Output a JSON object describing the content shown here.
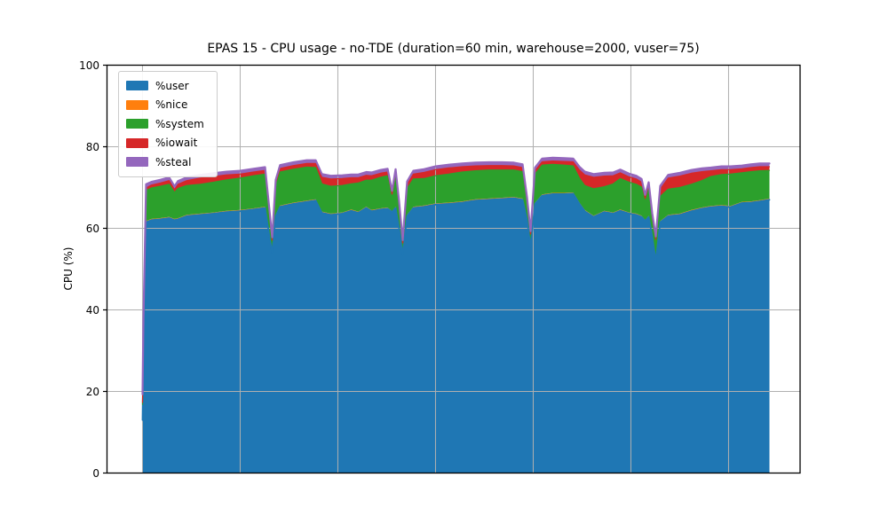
{
  "chart": {
    "title": "EPAS 15 - CPU usage - no-TDE (duration=60 min, warehouse=2000, vuser=75)",
    "ylabel": "CPU (%)"
  },
  "chart_data": {
    "type": "area",
    "stacked": true,
    "title": "EPAS 15 - CPU usage - no-TDE (duration=60 min, warehouse=2000, vuser=75)",
    "xlabel": "",
    "ylabel": "CPU (%)",
    "ylim": [
      0,
      100
    ],
    "yticks": [
      0,
      20,
      40,
      60,
      80,
      100
    ],
    "x_tick_labels": [],
    "grid": true,
    "legend_position": "upper left",
    "x_unit": "fraction of 60 min run (no x tick labels shown)",
    "x_data_margin": [
      0.0512,
      0.9558
    ],
    "x_gridline_ts": [
      0.0,
      0.1558,
      0.3116,
      0.4674,
      0.6232,
      0.779,
      0.9348
    ],
    "t": [
      0.0,
      0.0014,
      0.0057,
      0.0142,
      0.0283,
      0.0425,
      0.051,
      0.0567,
      0.0708,
      0.0921,
      0.1133,
      0.1346,
      0.1558,
      0.1771,
      0.1955,
      0.2025,
      0.2068,
      0.2125,
      0.2195,
      0.2408,
      0.262,
      0.2762,
      0.2861,
      0.3003,
      0.3187,
      0.3329,
      0.3442,
      0.3569,
      0.3654,
      0.3796,
      0.3909,
      0.398,
      0.4037,
      0.4093,
      0.415,
      0.4221,
      0.432,
      0.449,
      0.4674,
      0.4887,
      0.5099,
      0.5312,
      0.5524,
      0.5737,
      0.5921,
      0.6062,
      0.6133,
      0.619,
      0.6261,
      0.6374,
      0.6544,
      0.6728,
      0.687,
      0.6969,
      0.7054,
      0.7195,
      0.7365,
      0.7507,
      0.762,
      0.7762,
      0.7875,
      0.796,
      0.8017,
      0.8074,
      0.813,
      0.8187,
      0.8258,
      0.8385,
      0.8569,
      0.8754,
      0.8924,
      0.9065,
      0.9235,
      0.9377,
      0.9561,
      0.9703,
      0.9845,
      1.0
    ],
    "series": [
      {
        "name": "%user",
        "color": "#1f77b4",
        "values": [
          13.0,
          30.0,
          61.5,
          62.0,
          62.2,
          62.5,
          62.0,
          62.2,
          63.0,
          63.3,
          63.6,
          64.0,
          64.2,
          64.6,
          65.0,
          58.0,
          54.0,
          63.0,
          65.3,
          66.0,
          66.5,
          66.8,
          63.8,
          63.3,
          63.6,
          64.3,
          63.8,
          65.0,
          64.2,
          64.6,
          64.8,
          64.0,
          65.0,
          60.0,
          53.5,
          63.0,
          65.0,
          65.3,
          65.8,
          66.0,
          66.3,
          66.8,
          67.0,
          67.2,
          67.4,
          67.0,
          62.0,
          55.5,
          66.0,
          68.0,
          68.4,
          68.4,
          68.5,
          66.0,
          64.2,
          62.8,
          64.0,
          63.6,
          64.3,
          63.6,
          63.3,
          62.8,
          61.8,
          62.8,
          58.0,
          52.0,
          61.5,
          63.0,
          63.3,
          64.2,
          64.8,
          65.2,
          65.4,
          65.2,
          66.2,
          66.3,
          66.6,
          67.0
        ]
      },
      {
        "name": "%nice",
        "color": "#ff7f0e",
        "values": [
          0.3,
          0.3,
          0.3,
          0.3,
          0.3,
          0.3,
          0.3,
          0.3,
          0.3,
          0.3,
          0.3,
          0.3,
          0.3,
          0.3,
          0.3,
          0.2,
          0.2,
          0.3,
          0.3,
          0.3,
          0.3,
          0.3,
          0.3,
          0.3,
          0.3,
          0.3,
          0.3,
          0.3,
          0.3,
          0.3,
          0.3,
          0.2,
          0.3,
          0.2,
          0.2,
          0.3,
          0.3,
          0.3,
          0.3,
          0.3,
          0.3,
          0.3,
          0.3,
          0.3,
          0.3,
          0.3,
          0.2,
          0.2,
          0.3,
          0.3,
          0.3,
          0.3,
          0.3,
          0.3,
          0.3,
          0.3,
          0.3,
          0.3,
          0.3,
          0.3,
          0.3,
          0.3,
          0.2,
          0.3,
          0.2,
          0.2,
          0.3,
          0.3,
          0.3,
          0.3,
          0.3,
          0.3,
          0.3,
          0.3,
          0.3,
          0.3,
          0.3,
          0.3
        ]
      },
      {
        "name": "%system",
        "color": "#2ca02c",
        "values": [
          3.5,
          5.0,
          7.5,
          7.6,
          7.8,
          8.0,
          6.5,
          7.3,
          7.2,
          7.2,
          7.4,
          7.6,
          7.8,
          8.0,
          8.0,
          5.0,
          2.5,
          7.0,
          8.2,
          8.2,
          8.2,
          7.8,
          6.8,
          6.7,
          6.6,
          6.3,
          7.0,
          6.5,
          7.3,
          7.6,
          7.8,
          3.5,
          7.5,
          5.0,
          2.3,
          6.5,
          6.8,
          6.6,
          6.8,
          7.0,
          7.2,
          7.0,
          7.0,
          6.8,
          6.6,
          6.6,
          4.0,
          2.5,
          7.0,
          7.2,
          7.0,
          6.8,
          6.5,
          6.0,
          6.0,
          6.6,
          5.9,
          7.0,
          7.6,
          7.4,
          7.2,
          7.0,
          4.5,
          6.5,
          4.0,
          4.5,
          6.0,
          6.3,
          6.4,
          6.3,
          6.6,
          7.2,
          7.5,
          7.8,
          7.1,
          7.3,
          7.2,
          6.9
        ]
      },
      {
        "name": "%iowait",
        "color": "#d62728",
        "values": [
          0.5,
          0.5,
          0.6,
          0.7,
          0.8,
          0.9,
          0.7,
          1.0,
          1.2,
          1.5,
          1.4,
          1.2,
          1.0,
          0.9,
          0.9,
          0.6,
          0.4,
          0.8,
          0.9,
          0.9,
          0.9,
          1.0,
          1.6,
          1.8,
          1.7,
          1.5,
          1.3,
          1.2,
          1.1,
          1.0,
          0.9,
          0.7,
          0.9,
          0.7,
          0.4,
          0.9,
          1.2,
          1.5,
          1.5,
          1.5,
          1.3,
          1.2,
          1.1,
          1.1,
          1.0,
          1.0,
          0.6,
          0.4,
          0.8,
          0.8,
          0.8,
          0.9,
          1.0,
          2.0,
          2.6,
          2.8,
          2.6,
          2.0,
          1.4,
          1.3,
          1.3,
          1.2,
          0.9,
          0.9,
          0.7,
          0.6,
          1.8,
          2.7,
          2.8,
          2.7,
          2.2,
          1.4,
          1.2,
          1.1,
          1.0,
          1.0,
          1.0,
          0.9
        ]
      },
      {
        "name": "%steal",
        "color": "#9467bd",
        "values": [
          2.0,
          1.5,
          0.9,
          0.8,
          0.8,
          0.8,
          0.8,
          0.8,
          0.8,
          0.8,
          0.8,
          0.8,
          0.8,
          0.8,
          0.8,
          0.8,
          0.7,
          0.8,
          0.8,
          0.8,
          0.8,
          0.8,
          0.8,
          0.8,
          0.8,
          0.8,
          0.8,
          0.8,
          0.8,
          0.8,
          0.8,
          0.8,
          0.8,
          0.8,
          0.7,
          0.8,
          0.8,
          0.8,
          0.8,
          0.8,
          0.8,
          0.8,
          0.8,
          0.8,
          0.8,
          0.8,
          0.8,
          0.7,
          0.8,
          0.8,
          0.8,
          0.8,
          0.8,
          0.8,
          0.8,
          0.8,
          0.8,
          0.8,
          0.8,
          0.8,
          0.8,
          0.8,
          0.8,
          0.8,
          0.8,
          0.7,
          0.8,
          0.8,
          0.8,
          0.8,
          0.8,
          0.8,
          0.8,
          0.8,
          0.8,
          0.8,
          0.8,
          0.8
        ]
      }
    ],
    "colors": {
      "background": "#ffffff",
      "grid": "#b0b0b0",
      "axis": "#000000",
      "text": "#000000"
    }
  }
}
